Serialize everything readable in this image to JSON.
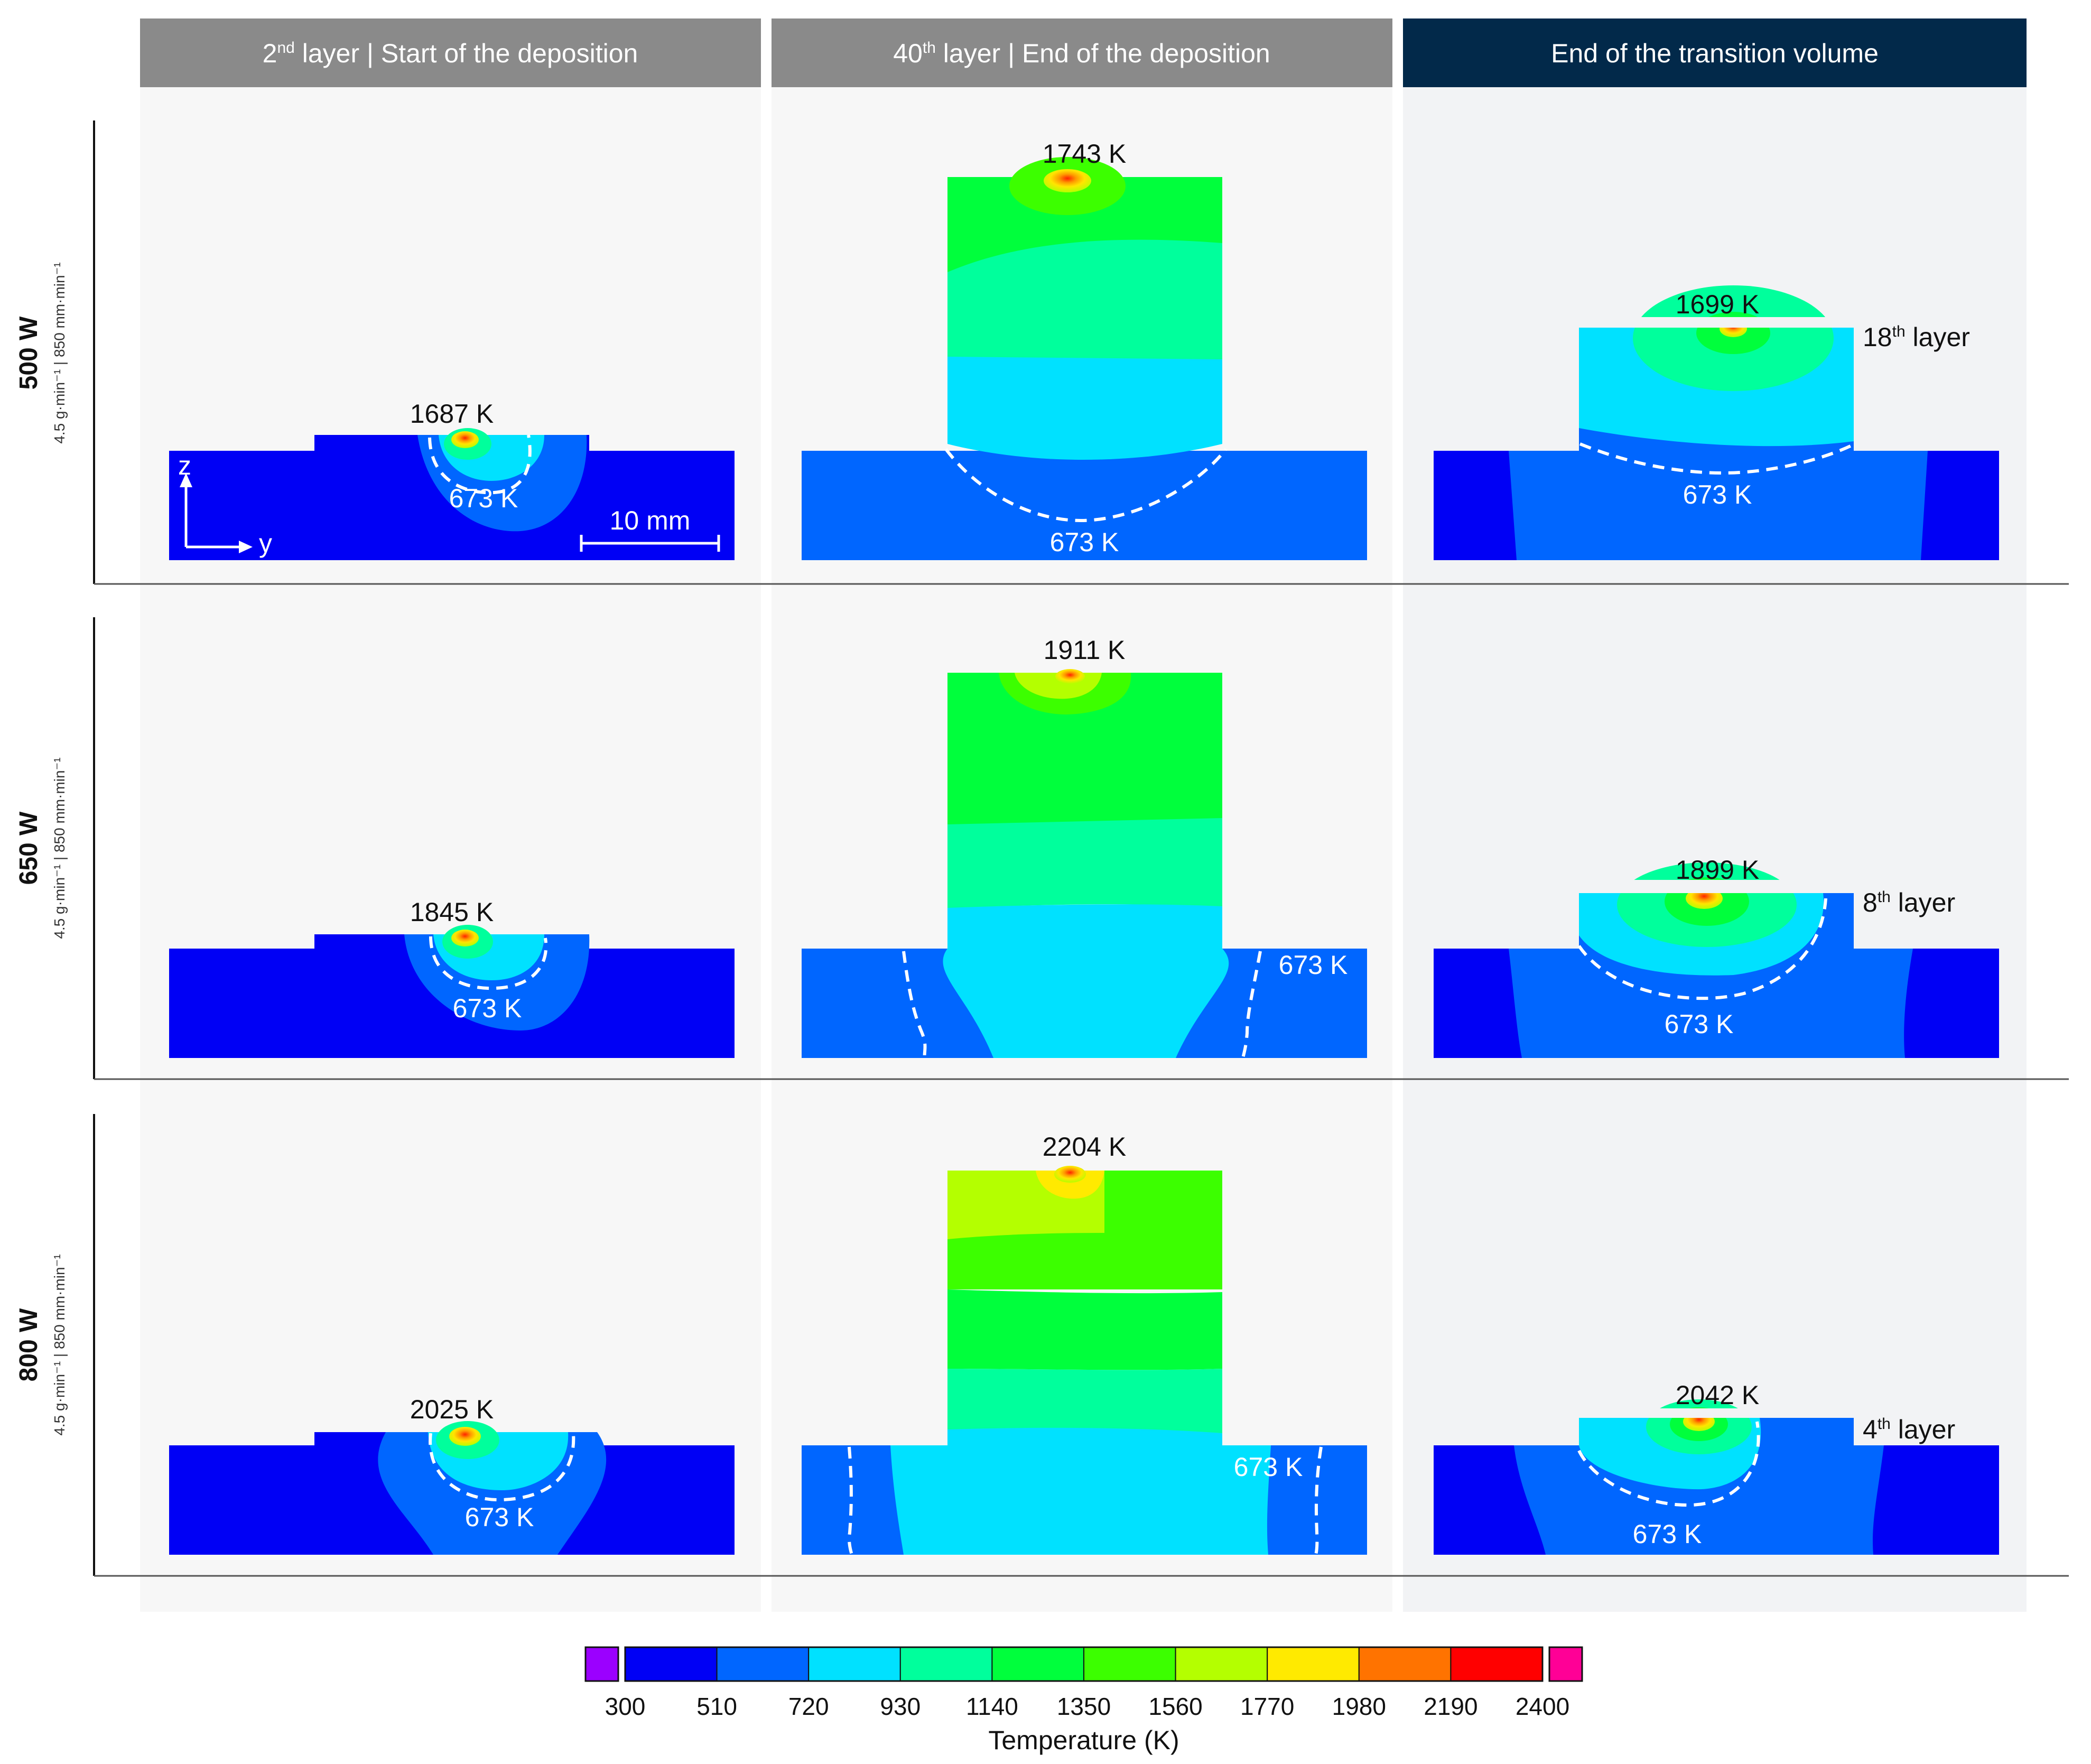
{
  "columns": [
    {
      "main": "2",
      "sup": "nd",
      "rest": " layer | Start of the deposition",
      "bg": "#8a8a8a"
    },
    {
      "main": "40",
      "sup": "th",
      "rest": " layer | End of the deposition",
      "bg": "#8a8a8a"
    },
    {
      "main": "",
      "sup": "",
      "rest": "End of the transition volume",
      "bg": "#02294a"
    }
  ],
  "rows": [
    {
      "power": "500 W",
      "params": "4.5 g·min⁻¹ | 850 mm·min⁻¹"
    },
    {
      "power": "650 W",
      "params": "4.5 g·min⁻¹ | 850 mm·min⁻¹"
    },
    {
      "power": "800 W",
      "params": "4.5 g·min⁻¹ | 850 mm·min⁻¹"
    }
  ],
  "cells": {
    "r0c0": {
      "peak": "1687 K",
      "iso": "673 K"
    },
    "r0c1": {
      "peak": "1743 K",
      "iso": "673 K"
    },
    "r0c2": {
      "peak": "1699 K",
      "iso": "673 K",
      "layer_num": "18",
      "layer_sup": "th",
      "layer_word": " layer"
    },
    "r1c0": {
      "peak": "1845 K",
      "iso": "673 K"
    },
    "r1c1": {
      "peak": "1911 K",
      "iso": "673 K"
    },
    "r1c2": {
      "peak": "1899 K",
      "iso": "673 K",
      "layer_num": "8",
      "layer_sup": "th",
      "layer_word": " layer"
    },
    "r2c0": {
      "peak": "2025 K",
      "iso": "673 K"
    },
    "r2c1": {
      "peak": "2204 K",
      "iso": "673 K"
    },
    "r2c2": {
      "peak": "2042 K",
      "iso": "673 K",
      "layer_num": "4",
      "layer_sup": "th",
      "layer_word": " layer"
    }
  },
  "axes": {
    "z_label": "z",
    "y_label": "y",
    "scale_label": "10 mm"
  },
  "colorbar": {
    "title": "Temperature (K)",
    "ticks": [
      "300",
      "510",
      "720",
      "930",
      "1140",
      "1350",
      "1560",
      "1770",
      "1980",
      "2190",
      "2400"
    ],
    "band_colors": [
      "#0000f5",
      "#0066ff",
      "#00e1ff",
      "#00ff9c",
      "#00ff3c",
      "#3cff00",
      "#b4ff00",
      "#ffea00",
      "#ff7300",
      "#ff0000"
    ],
    "under_color": "#9b00ff",
    "over_color": "#ff0096"
  }
}
